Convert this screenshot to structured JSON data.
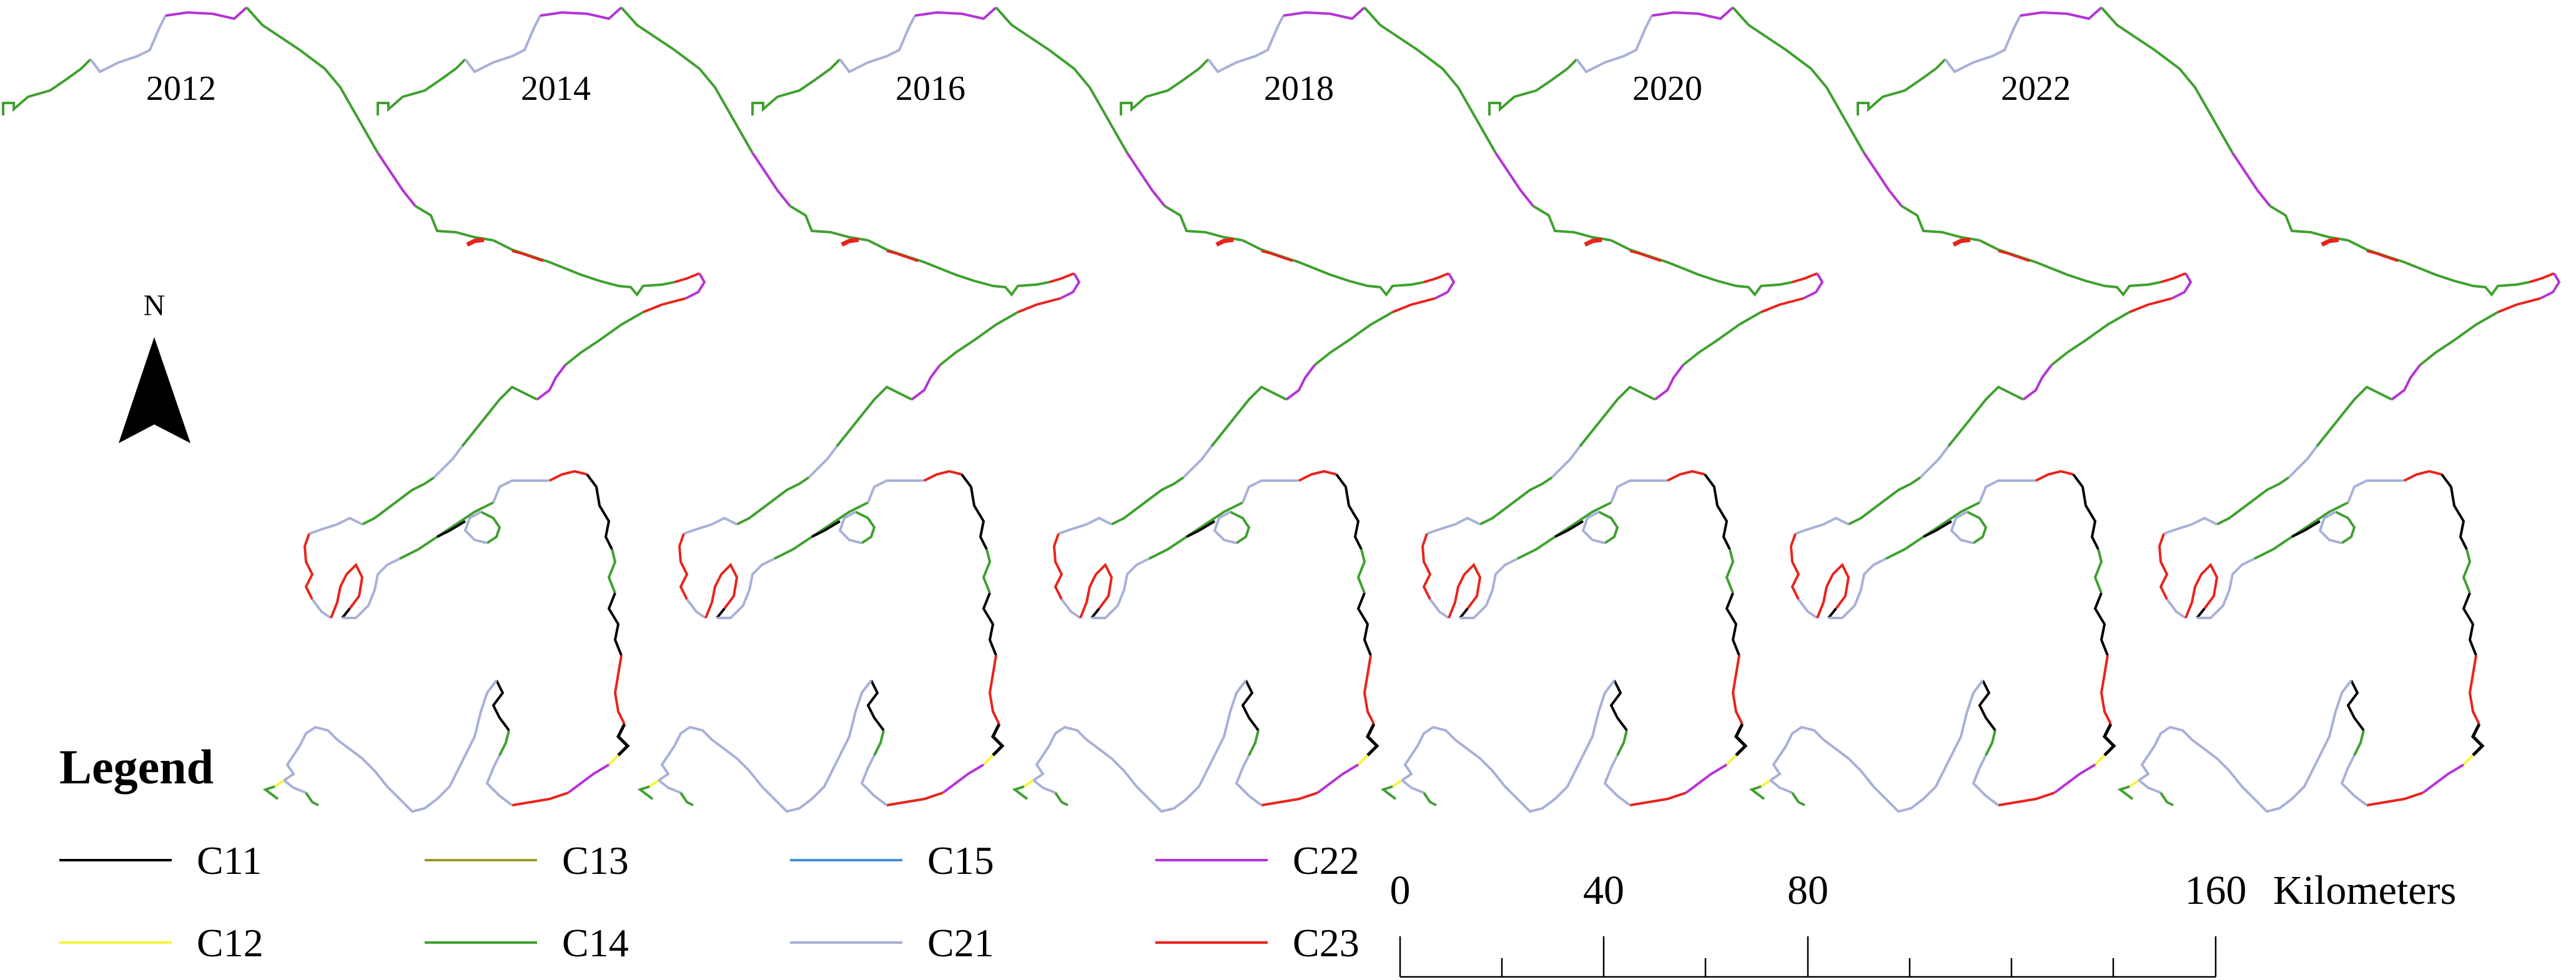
{
  "panels": [
    {
      "year": "2012"
    },
    {
      "year": "2014"
    },
    {
      "year": "2016"
    },
    {
      "year": "2018"
    },
    {
      "year": "2020"
    },
    {
      "year": "2022"
    }
  ],
  "north_arrow": {
    "label": "N"
  },
  "legend": {
    "title": "Legend",
    "items": [
      {
        "code": "C11",
        "color": "#000000"
      },
      {
        "code": "C12",
        "color": "#f5f53c"
      },
      {
        "code": "C13",
        "color": "#9a9a2a"
      },
      {
        "code": "C14",
        "color": "#3fa02f"
      },
      {
        "code": "C15",
        "color": "#4a8fd8"
      },
      {
        "code": "C21",
        "color": "#a8b0d8"
      },
      {
        "code": "C22",
        "color": "#b533d6"
      },
      {
        "code": "C23",
        "color": "#e8241c"
      }
    ]
  },
  "scale_bar": {
    "ticks": [
      "0",
      "40",
      "80",
      "160"
    ],
    "unit": "Kilometers"
  }
}
